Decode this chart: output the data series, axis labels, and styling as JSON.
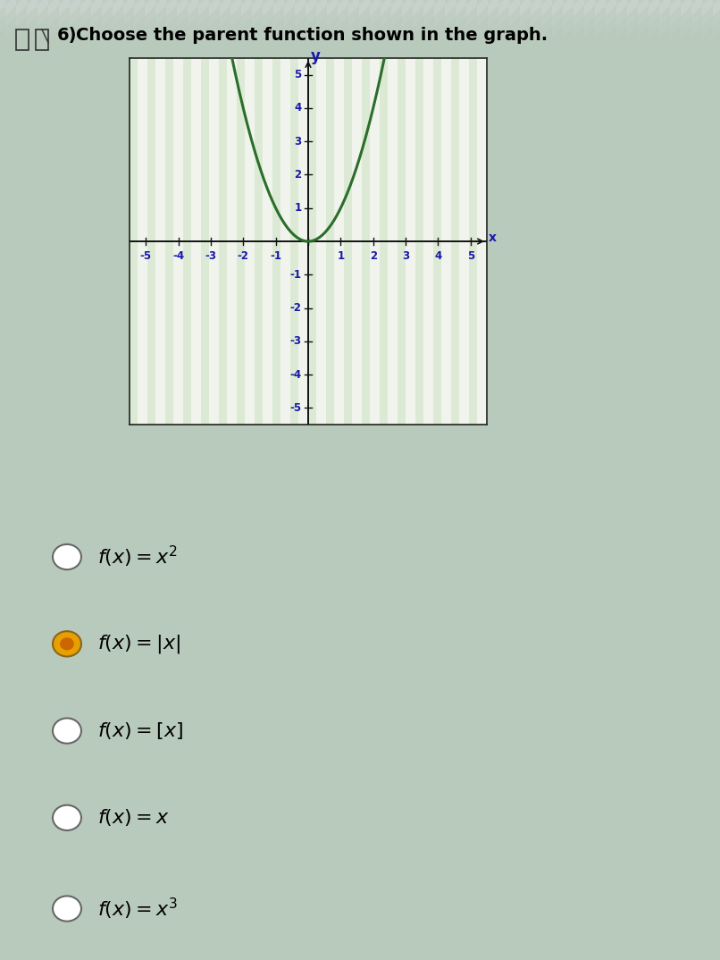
{
  "title_prefix": "6)",
  "title_text": "Choose the parent function shown in the graph.",
  "title_fontsize": 14,
  "title_fontweight": "bold",
  "page_bg_color": "#c8d2cc",
  "graph_bg_color": "#f0f4ec",
  "graph_xlim": [
    -5.5,
    5.5
  ],
  "graph_ylim": [
    -5.5,
    5.5
  ],
  "graph_xticks": [
    -5,
    -4,
    -3,
    -2,
    -1,
    1,
    2,
    3,
    4,
    5
  ],
  "graph_yticks": [
    -5,
    -4,
    -3,
    -2,
    -1,
    1,
    2,
    3,
    4,
    5
  ],
  "curve_color": "#2a6e2a",
  "curve_linewidth": 2.2,
  "axis_color": "#111111",
  "tick_label_color": "#1a1aaa",
  "tick_fontsize": 8.5,
  "y_label": "y",
  "x_label": "x",
  "label_color": "#1a1aaa",
  "options": [
    {
      "text": "$f(x) = x^2$",
      "selected": false
    },
    {
      "text": "$f(x) = |x|$",
      "selected": true
    },
    {
      "text": "$f(x) = [x]$",
      "selected": false
    },
    {
      "text": "$f(x) = x$",
      "selected": false
    },
    {
      "text": "$f(x) = x^3$",
      "selected": false
    }
  ],
  "option_fontsize": 16,
  "selected_fill": "#e8a000",
  "selected_inner": "#cc6600",
  "unselected_fill": "#ffffff",
  "circle_edge_color": "#666666",
  "stripe_bg_color1": "#beccbe",
  "stripe_bg_color2": "#ccd6cc",
  "graph_stripe_color": "#d8e8d0",
  "graph_stripe_bg": "#e8f2e4"
}
